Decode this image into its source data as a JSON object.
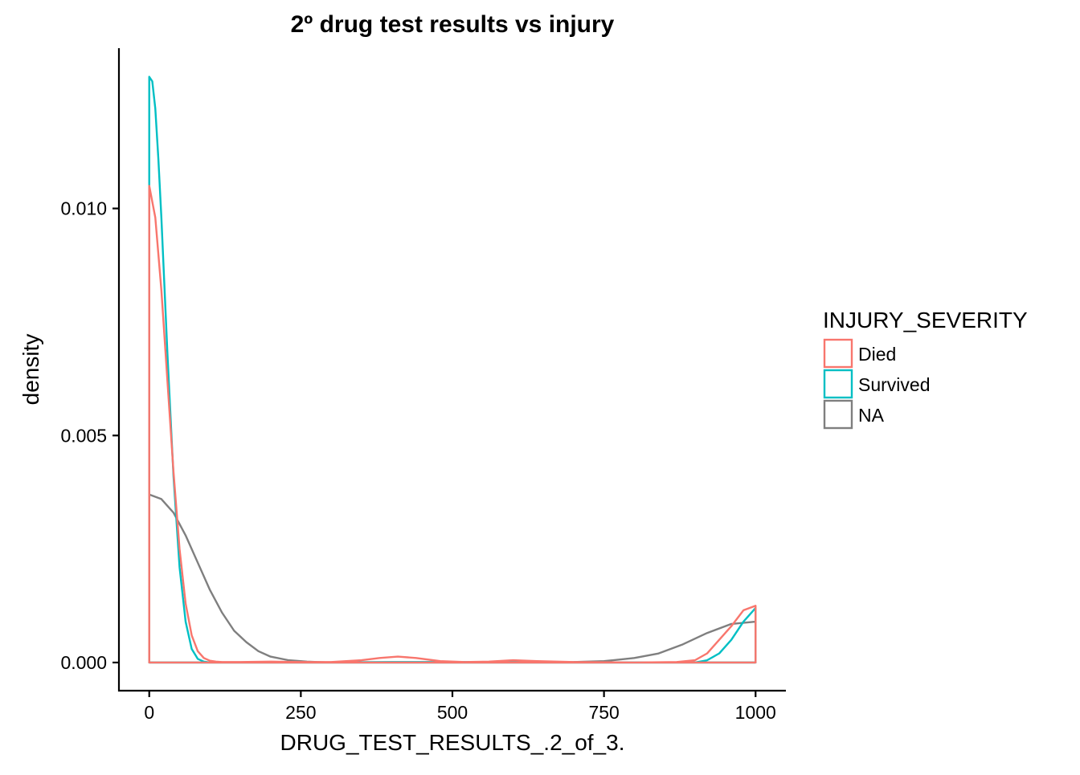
{
  "chart_data": {
    "type": "line",
    "title": "2º drug test results vs injury",
    "xlabel": "DRUG_TEST_RESULTS_.2_of_3.",
    "ylabel": "density",
    "xlim": [
      -50,
      1050
    ],
    "ylim": [
      -0.00062,
      0.01353
    ],
    "x_ticks": [
      0,
      250,
      500,
      750,
      1000
    ],
    "x_tick_labels": [
      "0",
      "250",
      "500",
      "750",
      "1000"
    ],
    "y_ticks": [
      0.0,
      0.005,
      0.01
    ],
    "y_tick_labels": [
      "0.000",
      "0.005",
      "0.010"
    ],
    "grid": false,
    "legend": {
      "title": "INJURY_SEVERITY",
      "position": "right"
    },
    "series": [
      {
        "name": "Died",
        "color": "#F8766D",
        "x": [
          0,
          10,
          20,
          30,
          40,
          50,
          60,
          70,
          80,
          90,
          100,
          110,
          120,
          150,
          200,
          250,
          300,
          350,
          380,
          410,
          440,
          480,
          520,
          560,
          600,
          640,
          700,
          800,
          870,
          900,
          920,
          940,
          960,
          980,
          1000
        ],
        "y": [
          0.0105,
          0.0098,
          0.0082,
          0.0062,
          0.0042,
          0.0025,
          0.0013,
          0.0006,
          0.00025,
          0.0001,
          4e-05,
          2e-05,
          1e-05,
          1e-05,
          2e-05,
          1e-05,
          1e-05,
          5e-05,
          0.0001,
          0.00013,
          0.0001,
          3e-05,
          1e-05,
          2e-05,
          5e-05,
          3e-05,
          1e-05,
          0.0,
          1e-05,
          5e-05,
          0.0002,
          0.0005,
          0.0008,
          0.00115,
          0.00125
        ]
      },
      {
        "name": "Survived",
        "color": "#00BFC4",
        "x": [
          0,
          5,
          10,
          15,
          20,
          30,
          40,
          50,
          60,
          70,
          80,
          90,
          100,
          120,
          200,
          400,
          600,
          800,
          900,
          920,
          940,
          960,
          980,
          1000
        ],
        "y": [
          0.0129,
          0.0128,
          0.0122,
          0.0111,
          0.0098,
          0.0068,
          0.0041,
          0.0021,
          0.0009,
          0.0003,
          8e-05,
          2e-05,
          0.0,
          0.0,
          0.0,
          1e-05,
          1e-05,
          0.0,
          0.0,
          5e-05,
          0.0002,
          0.0005,
          0.0009,
          0.0012
        ]
      },
      {
        "name": "NA",
        "color": "#7F7F7F",
        "x": [
          0,
          20,
          40,
          60,
          80,
          100,
          120,
          140,
          160,
          180,
          200,
          230,
          260,
          300,
          400,
          500,
          600,
          700,
          750,
          800,
          840,
          880,
          920,
          960,
          1000
        ],
        "y": [
          0.0037,
          0.0036,
          0.0033,
          0.0028,
          0.0022,
          0.0016,
          0.0011,
          0.0007,
          0.00045,
          0.00025,
          0.00013,
          5e-05,
          2e-05,
          0.0,
          0.0,
          0.0,
          0.0,
          1e-05,
          3e-05,
          0.0001,
          0.0002,
          0.0004,
          0.00065,
          0.00085,
          0.0009
        ]
      }
    ]
  }
}
